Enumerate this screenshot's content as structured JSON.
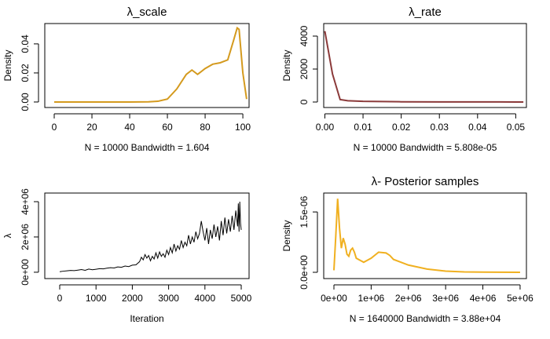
{
  "chart_data": [
    {
      "type": "line",
      "title": "λ_scale",
      "xlabel": "N = 10000   Bandwidth = 1.604",
      "ylabel": "Density",
      "color": "#d49a1e",
      "x": [
        0,
        10,
        20,
        30,
        40,
        50,
        55,
        60,
        65,
        70,
        73,
        76,
        80,
        84,
        88,
        92,
        95,
        97,
        98,
        100,
        102
      ],
      "values": [
        0,
        0,
        0,
        0,
        0,
        0.0001,
        0.0005,
        0.002,
        0.009,
        0.019,
        0.022,
        0.019,
        0.023,
        0.026,
        0.027,
        0.029,
        0.042,
        0.051,
        0.05,
        0.02,
        0.002
      ],
      "xlim": [
        -5,
        103.3
      ],
      "ylim": [
        -0.0038,
        0.054
      ],
      "xticks": [
        0,
        20,
        40,
        60,
        80,
        100
      ],
      "yticks": [
        {
          "value": 0,
          "label": "0.00"
        },
        {
          "value": 0.02,
          "label": "0.02"
        },
        {
          "value": 0.04,
          "label": "0.04"
        }
      ]
    },
    {
      "type": "line",
      "title": "λ_rate",
      "xlabel": "N = 10000   Bandwidth = 5.808e-05",
      "ylabel": "Density",
      "color": "#8b3a3a",
      "x": [
        0,
        0.002,
        0.004,
        0.006,
        0.01,
        0.02,
        0.03,
        0.04,
        0.05,
        0.052
      ],
      "values": [
        4300,
        1700,
        150,
        80,
        40,
        15,
        8,
        5,
        3,
        3
      ],
      "xlim": [
        -0.0003,
        0.0528
      ],
      "ylim": [
        -333,
        4762
      ],
      "xticks": [
        {
          "value": 0,
          "label": "0.00"
        },
        0.01,
        0.02,
        0.03,
        0.04,
        0.05
      ],
      "yticks": [
        0,
        2000,
        4000
      ]
    },
    {
      "type": "line",
      "xlabel": "Iteration",
      "ylabel": "λ",
      "color": "#000000",
      "x": [
        0,
        100,
        200,
        300,
        400,
        500,
        600,
        700,
        800,
        900,
        1000,
        1100,
        1200,
        1300,
        1400,
        1500,
        1600,
        1700,
        1800,
        1900,
        2000,
        2100,
        2200,
        2250,
        2300,
        2350,
        2400,
        2450,
        2500,
        2550,
        2600,
        2650,
        2700,
        2750,
        2800,
        2850,
        2900,
        2950,
        3000,
        3050,
        3100,
        3150,
        3200,
        3250,
        3300,
        3350,
        3400,
        3450,
        3500,
        3550,
        3600,
        3650,
        3700,
        3750,
        3800,
        3850,
        3900,
        3950,
        4000,
        4050,
        4100,
        4150,
        4200,
        4250,
        4300,
        4350,
        4400,
        4450,
        4500,
        4550,
        4600,
        4650,
        4700,
        4750,
        4800,
        4850,
        4900,
        4920,
        4940,
        4960,
        4980,
        5000
      ],
      "values": [
        30000,
        60000,
        80000,
        100000,
        90000,
        120000,
        150000,
        110000,
        180000,
        140000,
        170000,
        200000,
        190000,
        230000,
        260000,
        240000,
        300000,
        280000,
        350000,
        320000,
        400000,
        420000,
        600000,
        850000,
        700000,
        1000000,
        800000,
        950000,
        650000,
        900000,
        750000,
        1100000,
        800000,
        1150000,
        900000,
        1050000,
        850000,
        1250000,
        1000000,
        1400000,
        1100000,
        1600000,
        1200000,
        1500000,
        1300000,
        1800000,
        1400000,
        1700000,
        1500000,
        2100000,
        1600000,
        2000000,
        1700000,
        2300000,
        1900000,
        2200000,
        2900000,
        2300000,
        1800000,
        2500000,
        1600000,
        2400000,
        1900000,
        2700000,
        2000000,
        2600000,
        1800000,
        2900000,
        2100000,
        3100000,
        2200000,
        3000000,
        2300000,
        3200000,
        2400000,
        3500000,
        2600000,
        3900000,
        2300000,
        4000000,
        2800000,
        2400000
      ],
      "xlim": [
        -411,
        5216
      ],
      "ylim": [
        -360000,
        4490000
      ],
      "xticks": [
        0,
        1000,
        2000,
        3000,
        4000,
        5000
      ],
      "yticks": [
        {
          "value": 0,
          "label": "0e+00"
        },
        {
          "value": 2000000,
          "label": "2e+06"
        },
        {
          "value": 4000000,
          "label": "4e+06"
        }
      ]
    },
    {
      "type": "line",
      "title": "λ- Posterior samples",
      "xlabel": "N = 1640000   Bandwidth = 3.88e+04",
      "ylabel": "Density",
      "color": "#f0b020",
      "x": [
        0,
        50000,
        100000,
        150000,
        200000,
        250000,
        300000,
        350000,
        400000,
        450000,
        500000,
        550000,
        600000,
        700000,
        800000,
        900000,
        1000000,
        1200000,
        1400000,
        1500000,
        1600000,
        1800000,
        2000000,
        2500000,
        3000000,
        3500000,
        4000000,
        5000000
      ],
      "values": [
        5e-08,
        9e-07,
        1.83e-06,
        1.1e-06,
        6e-07,
        8.5e-07,
        7e-07,
        4.5e-07,
        4e-07,
        5.5e-07,
        6e-07,
        5e-07,
        3.5e-07,
        3e-07,
        2.5e-07,
        3e-07,
        3.5e-07,
        5e-07,
        4.8e-07,
        4.2e-07,
        3.2e-07,
        2.5e-07,
        1.8e-07,
        8e-08,
        3e-08,
        1e-08,
        5e-09,
        1e-09
      ],
      "xlim": [
        -274000,
        5170000
      ],
      "ylim": [
        -1.56e-07,
        1.97e-06
      ],
      "xticks": [
        {
          "value": 0,
          "label": "0e+00"
        },
        {
          "value": 1000000,
          "label": "1e+06"
        },
        {
          "value": 2000000,
          "label": "2e+06"
        },
        {
          "value": 3000000,
          "label": "3e+06"
        },
        {
          "value": 4000000,
          "label": "4e+06"
        },
        {
          "value": 5000000,
          "label": "5e+06"
        }
      ],
      "yticks": [
        {
          "value": 0,
          "label": "0.0e+00"
        },
        {
          "value": 1.5e-06,
          "label": "1.5e-06"
        }
      ]
    }
  ]
}
